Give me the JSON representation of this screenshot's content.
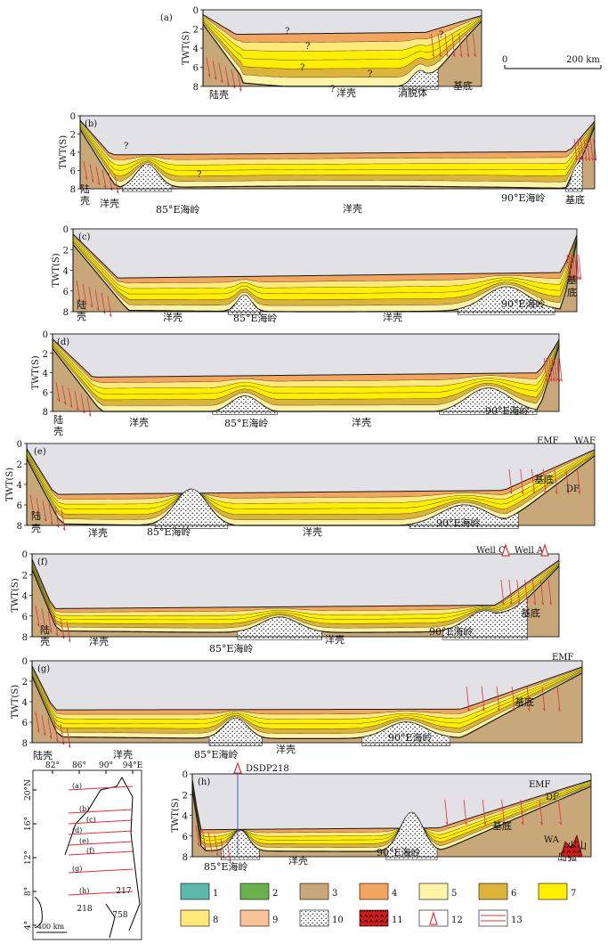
{
  "colors": {
    "sky": "#e2e2e6",
    "c1": "#5fb9a8",
    "c2": "#6ab04c",
    "c3": "#c8a878",
    "c4": "#f2a55e",
    "c5": "#fff3a8",
    "c6": "#dcb43a",
    "c7": "#ffee00",
    "c8": "#ffe97a",
    "c9": "#f9c39a",
    "c11": "#d11a1a",
    "fault": "#e0303b",
    "line": "#1a1a1a"
  },
  "axis": {
    "ylabel": "TWT(S)",
    "ticks": [
      "0",
      "2",
      "4",
      "6",
      "8"
    ]
  },
  "scale": {
    "zero": "0",
    "label": "200 km"
  },
  "q": "?",
  "sections": {
    "a": {
      "tag": "(a)",
      "l1": "陆壳",
      "l2": "洋壳",
      "l3": "消脱体",
      "l4": "基底"
    },
    "b": {
      "tag": "(b)",
      "l1": "陆",
      "l1b": "壳",
      "l2": "洋壳",
      "l3": "85°E海岭",
      "l4": "洋壳",
      "l5": "90°E海岭",
      "l6": "基底"
    },
    "c": {
      "tag": "(c)",
      "l1": "陆",
      "l1b": "壳",
      "l2": "洋壳",
      "l3": "85°E海岭",
      "l4": "洋壳",
      "l5": "90°E海岭",
      "l6": "基",
      "l6b": "底"
    },
    "d": {
      "tag": "(d)",
      "l1": "陆",
      "l1b": "壳",
      "l2": "洋壳",
      "l3": "85°E海岭",
      "l4": "洋壳",
      "l5": "90°E海岭"
    },
    "e": {
      "tag": "(e)",
      "l1": "陆",
      "l1b": "壳",
      "l2": "洋壳",
      "l3": "85°E海岭",
      "l4": "洋壳",
      "l5": "90°E海岭",
      "l6": "基底",
      "emf": "EMF",
      "waf": "WAF",
      "df": "DF"
    },
    "f": {
      "tag": "(f)",
      "l1": "陆",
      "l1b": "壳",
      "l2": "洋壳",
      "l3": "85°E海岭",
      "l4": "洋壳",
      "l5": "90°E海岭",
      "l6": "基底",
      "w1": "Well C",
      "w2": "Well A"
    },
    "g": {
      "tag": "(g)",
      "l1": "陆壳",
      "l2": "洋壳",
      "l3": "85°E海岭",
      "l4": "洋壳",
      "l5": "90°E海岭",
      "l6": "基底",
      "emf": "EMF"
    },
    "h": {
      "tag": "(h)",
      "l1": "85°E海岭",
      "l2": "洋壳",
      "l3": "90°E海岭",
      "l4": "基底",
      "emf": "EMF",
      "df": "DF",
      "wa": "WA",
      "v1": "火山",
      "v2": "岛弧",
      "well": "DSDP218"
    }
  },
  "map": {
    "lon": [
      "82°",
      "86°",
      "90°",
      "94°E"
    ],
    "lat": [
      "20°N",
      "16°",
      "12°",
      "8°",
      "4°"
    ],
    "lines": [
      "(a)",
      "(b)",
      "(c)",
      "(d)",
      "(e)",
      "(f)",
      "(g)",
      "(h)"
    ],
    "sites": [
      "218",
      "217",
      "758"
    ],
    "scale": "400 km"
  },
  "legend": [
    "1",
    "2",
    "3",
    "4",
    "5",
    "6",
    "7",
    "8",
    "9",
    "10",
    "11",
    "12",
    "13"
  ]
}
